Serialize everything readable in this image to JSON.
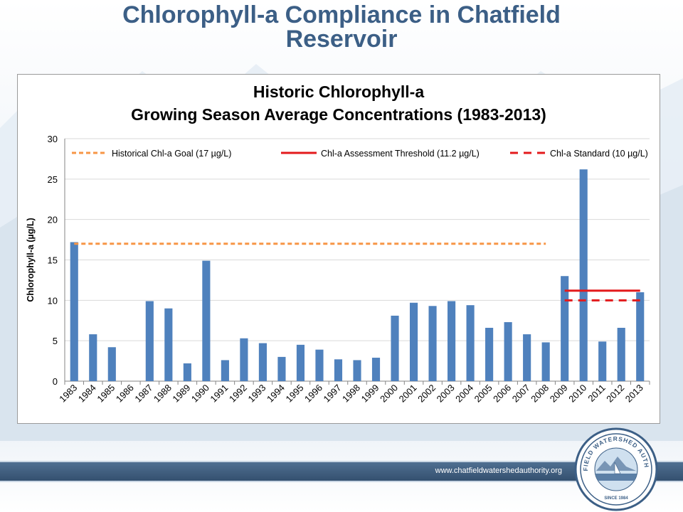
{
  "slide": {
    "title": "Chlorophyll-a Compliance in Chatfield Reservoir",
    "footer_url": "www.chatfieldwatershedauthority.org",
    "logo_text": "CHATFIELD WATERSHED AUTHORITY",
    "logo_since": "SINCE 1984",
    "colors": {
      "title": "#3c5f86",
      "footer": "#3f5e80"
    }
  },
  "chart_data": {
    "type": "bar",
    "title": [
      "Historic Chlorophyll-a",
      "Growing Season Average Concentrations (1983-2013)"
    ],
    "ylabel": "Chlorophyll-a (µg/L)",
    "xlabel": "",
    "ylim": [
      0,
      30
    ],
    "yticks": [
      0,
      5,
      10,
      15,
      20,
      25,
      30
    ],
    "grid": true,
    "bar_color": "#4f81bd",
    "categories": [
      "1983",
      "1984",
      "1985",
      "1986",
      "1987",
      "1988",
      "1989",
      "1990",
      "1991",
      "1992",
      "1993",
      "1994",
      "1995",
      "1996",
      "1997",
      "1998",
      "1999",
      "2000",
      "2001",
      "2002",
      "2003",
      "2004",
      "2005",
      "2006",
      "2007",
      "2008",
      "2009",
      "2010",
      "2011",
      "2012",
      "2013"
    ],
    "values": [
      17.2,
      5.8,
      4.2,
      0,
      9.9,
      9.0,
      2.2,
      14.9,
      2.6,
      5.3,
      4.7,
      3.0,
      4.5,
      3.9,
      2.7,
      2.6,
      2.9,
      8.1,
      9.7,
      9.3,
      9.9,
      9.4,
      6.6,
      7.3,
      5.8,
      4.8,
      13.0,
      26.2,
      4.9,
      6.6,
      11.0
    ],
    "legend_position": "top",
    "reference_lines": [
      {
        "name": "Historical Chl-a Goal (17 µg/L)",
        "value": 17,
        "x_start": "1983",
        "x_end": "2008",
        "color": "#f79646",
        "style": "dotted"
      },
      {
        "name": "Chl-a Assessment Threshold (11.2 µg/L)",
        "value": 11.2,
        "x_start": "2009",
        "x_end": "2013",
        "color": "#e31a1c",
        "style": "solid"
      },
      {
        "name": "Chl-a Standard (10 µg/L)",
        "value": 10,
        "x_start": "2009",
        "x_end": "2013",
        "color": "#e31a1c",
        "style": "dashed"
      }
    ]
  }
}
